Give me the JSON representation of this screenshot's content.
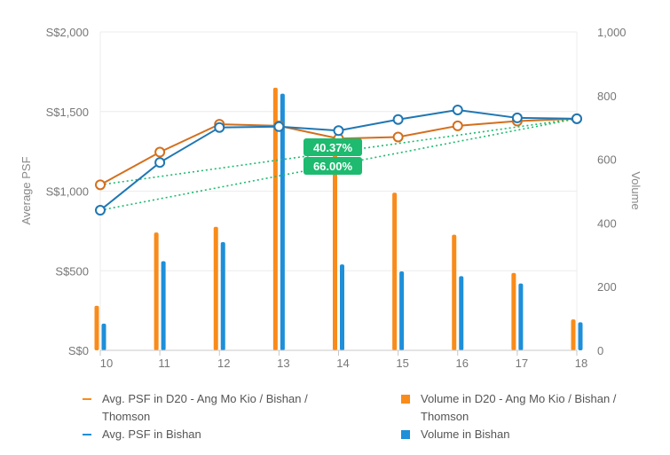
{
  "chart_data": {
    "type": "bar",
    "x": [
      10,
      11,
      12,
      13,
      14,
      15,
      16,
      17,
      18
    ],
    "ylabel_left": "Average PSF",
    "ylabel_right": "Volume",
    "left_axis": {
      "ticks": [
        "S$0",
        "S$500",
        "S$1,000",
        "S$1,500",
        "S$2,000"
      ],
      "ylim": [
        0,
        2000
      ]
    },
    "right_axis": {
      "ticks": [
        "0",
        "200",
        "400",
        "600",
        "800",
        "1,000"
      ],
      "ylim": [
        0,
        1000
      ]
    },
    "series": [
      {
        "name": "Volume in D20 - Ang Mo Kio / Bishan / Thomson",
        "type": "bar",
        "axis": "right",
        "color": "#f98b1a",
        "values": [
          140,
          370,
          388,
          825,
          620,
          495,
          363,
          243,
          97
        ]
      },
      {
        "name": "Volume in Bishan",
        "type": "bar",
        "axis": "right",
        "color": "#1e8fd9",
        "values": [
          84,
          280,
          340,
          806,
          270,
          248,
          233,
          210,
          88
        ]
      },
      {
        "name": "Avg. PSF in D20 - Ang Mo Kio / Bishan / Thomson",
        "type": "line",
        "axis": "left",
        "color": "#d46f1c",
        "values": [
          1040,
          1245,
          1420,
          1410,
          1330,
          1340,
          1410,
          1440,
          1455
        ]
      },
      {
        "name": "Avg. PSF in Bishan",
        "type": "line",
        "axis": "left",
        "color": "#1f77b4",
        "values": [
          880,
          1180,
          1400,
          1405,
          1380,
          1450,
          1510,
          1460,
          1455
        ]
      }
    ],
    "trend_lines": [
      {
        "from_x": 10,
        "to_x": 18,
        "series": "Avg. PSF in D20 - Ang Mo Kio / Bishan / Thomson",
        "label": "40.37%"
      },
      {
        "from_x": 10,
        "to_x": 18,
        "series": "Avg. PSF in Bishan",
        "label": "66.00%"
      }
    ],
    "trend_color": "#1dba6f",
    "grid": true,
    "legend_position": "bottom"
  },
  "legend": [
    {
      "label": "Avg. PSF in D20 - Ang Mo Kio / Bishan / Thomson",
      "kind": "line",
      "color": "#f98b1a"
    },
    {
      "label": "Volume in D20 - Ang Mo Kio / Bishan / Thomson",
      "kind": "square",
      "color": "#f98b1a"
    },
    {
      "label": "Avg. PSF in Bishan",
      "kind": "line",
      "color": "#1e8fd9"
    },
    {
      "label": "Volume in Bishan",
      "kind": "square",
      "color": "#1e8fd9"
    }
  ]
}
